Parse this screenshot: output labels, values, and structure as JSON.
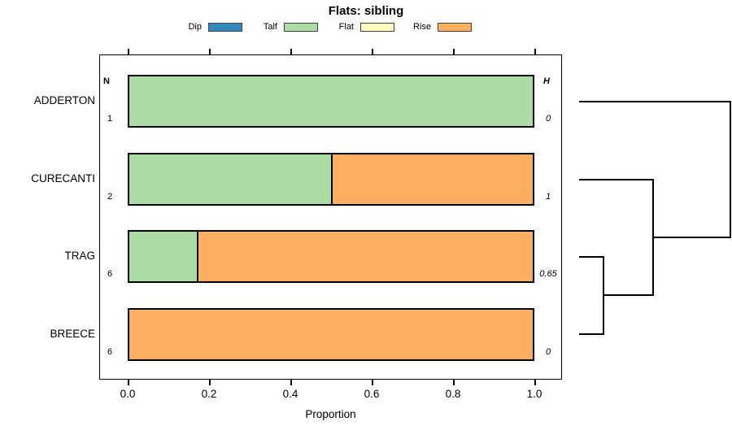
{
  "title": "Flats: sibling",
  "legend": {
    "items": [
      {
        "label": "Dip",
        "color": "#3288BD"
      },
      {
        "label": "Talf",
        "color": "#ABDDA4"
      },
      {
        "label": "Flat",
        "color": "#FFFFBF"
      },
      {
        "label": "Rise",
        "color": "#FDAE61"
      }
    ]
  },
  "axis": {
    "xlabel": "Proportion",
    "tick_labels": [
      "0.0",
      "0.2",
      "0.4",
      "0.6",
      "0.8",
      "1.0"
    ]
  },
  "columns": {
    "n_header": "N",
    "h_header": "H"
  },
  "chart_data": {
    "type": "bar",
    "subtype": "horizontal-stacked-proportion-with-dendrogram",
    "title": "Flats: sibling",
    "xlabel": "Proportion",
    "xlim": [
      0,
      1
    ],
    "x_ticks": [
      0.0,
      0.2,
      0.4,
      0.6,
      0.8,
      1.0
    ],
    "legend_categories": [
      "Dip",
      "Talf",
      "Flat",
      "Rise"
    ],
    "colors": {
      "Dip": "#3288BD",
      "Talf": "#ABDDA4",
      "Flat": "#FFFFBF",
      "Rise": "#FDAE61"
    },
    "rows": [
      {
        "name": "ADDERTON",
        "N": "1",
        "H": "0",
        "segments": [
          {
            "category": "Talf",
            "value": 1.0
          }
        ]
      },
      {
        "name": "CURECANTI",
        "N": "2",
        "H": "1",
        "segments": [
          {
            "category": "Talf",
            "value": 0.5
          },
          {
            "category": "Rise",
            "value": 0.5
          }
        ]
      },
      {
        "name": "TRAG",
        "N": "6",
        "H": "0.65",
        "segments": [
          {
            "category": "Talf",
            "value": 0.167
          },
          {
            "category": "Rise",
            "value": 0.833
          }
        ]
      },
      {
        "name": "BREECE",
        "N": "6",
        "H": "0",
        "segments": [
          {
            "category": "Rise",
            "value": 1.0
          }
        ]
      }
    ],
    "dendrogram": {
      "position": "right",
      "structure": "(((TRAG,BREECE),CURECANTI),ADDERTON)",
      "row_heights_shown": {
        "ADDERTON": "0",
        "CURECANTI": "1",
        "TRAG": "0.65",
        "BREECE": "0"
      }
    }
  }
}
